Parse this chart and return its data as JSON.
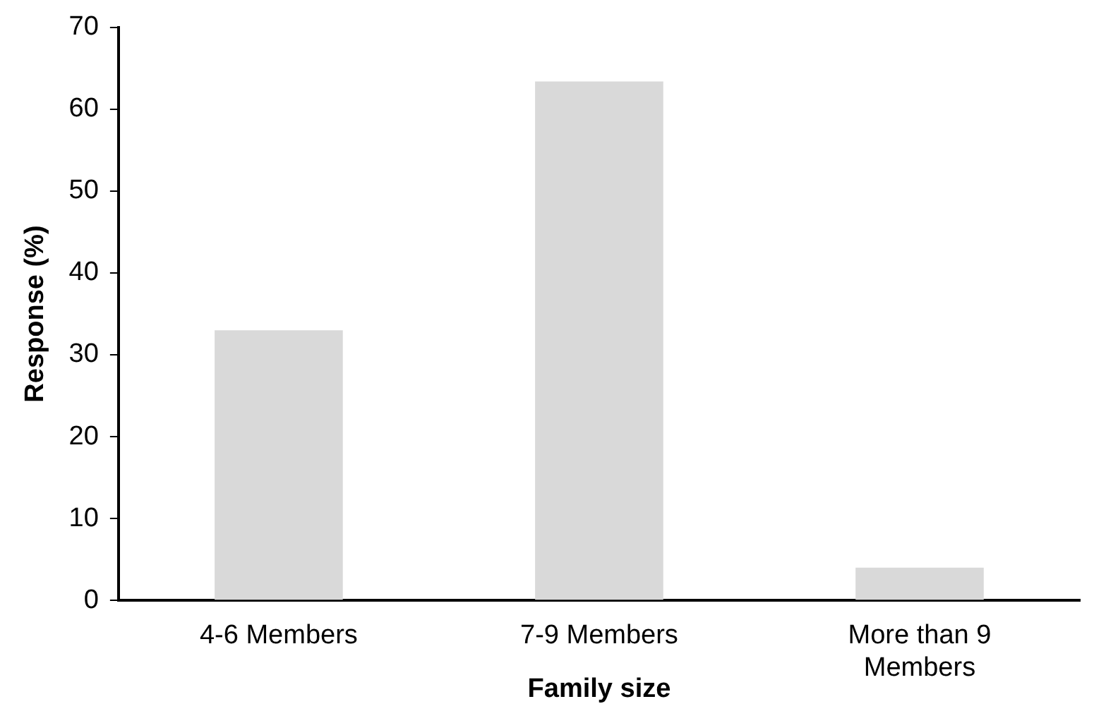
{
  "chart_data": {
    "type": "bar",
    "xlabel": "Family size",
    "ylabel": "Response (%)",
    "categories": [
      "4-6 Members",
      "7-9 Members",
      "More than 9 Members"
    ],
    "values": [
      33,
      63.4,
      4
    ],
    "color": "#d9d9d9",
    "ylim": [
      0,
      70
    ],
    "yticks": [
      0,
      10,
      20,
      30,
      40,
      50,
      60,
      70
    ],
    "grid": false,
    "legend": false
  }
}
